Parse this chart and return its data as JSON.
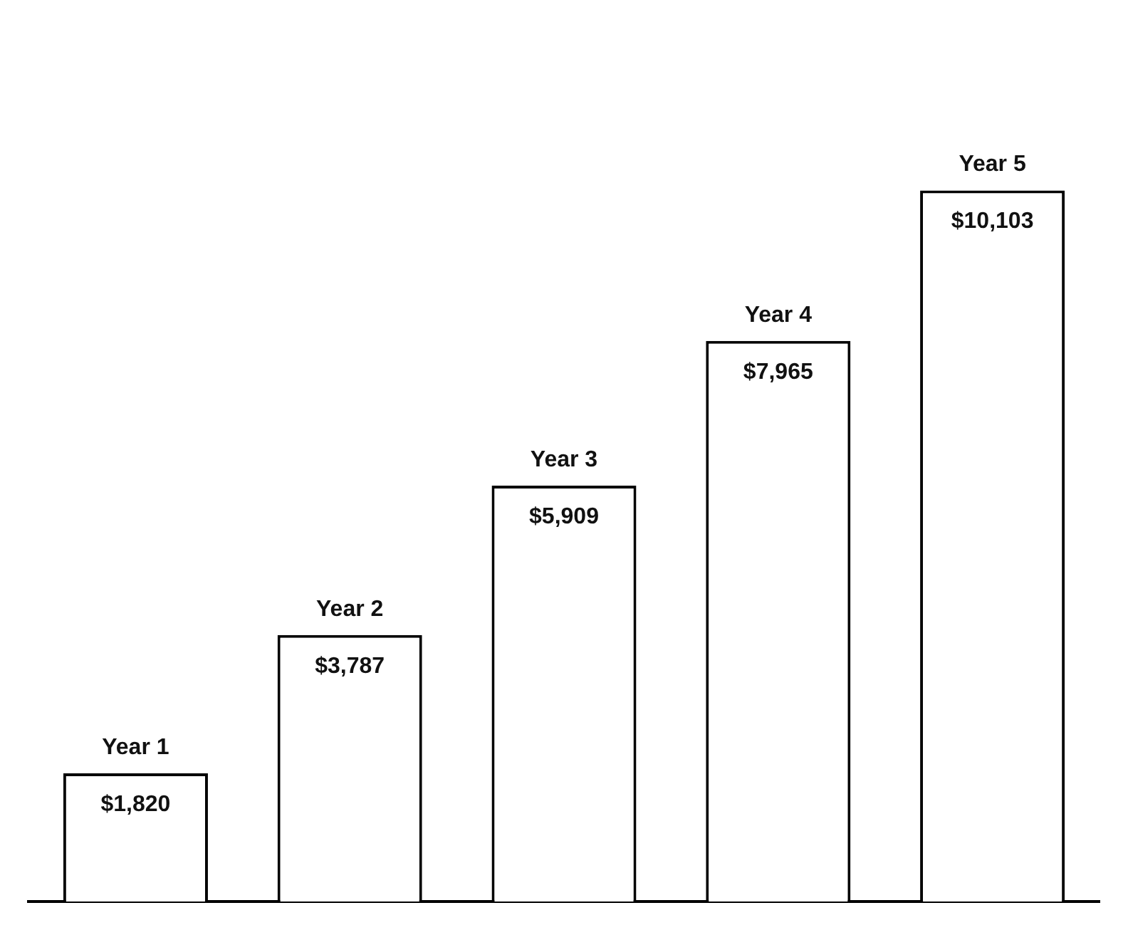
{
  "chart_data": {
    "type": "bar",
    "categories": [
      "Year 1",
      "Year 2",
      "Year 3",
      "Year 4",
      "Year 5"
    ],
    "values": [
      1820,
      3787,
      5909,
      7965,
      10103
    ],
    "value_labels": [
      "$1,820",
      "$3,787",
      "$5,909",
      "$7,965",
      "$10,103"
    ],
    "color": "#ffffff",
    "grid": false,
    "legend": false
  }
}
